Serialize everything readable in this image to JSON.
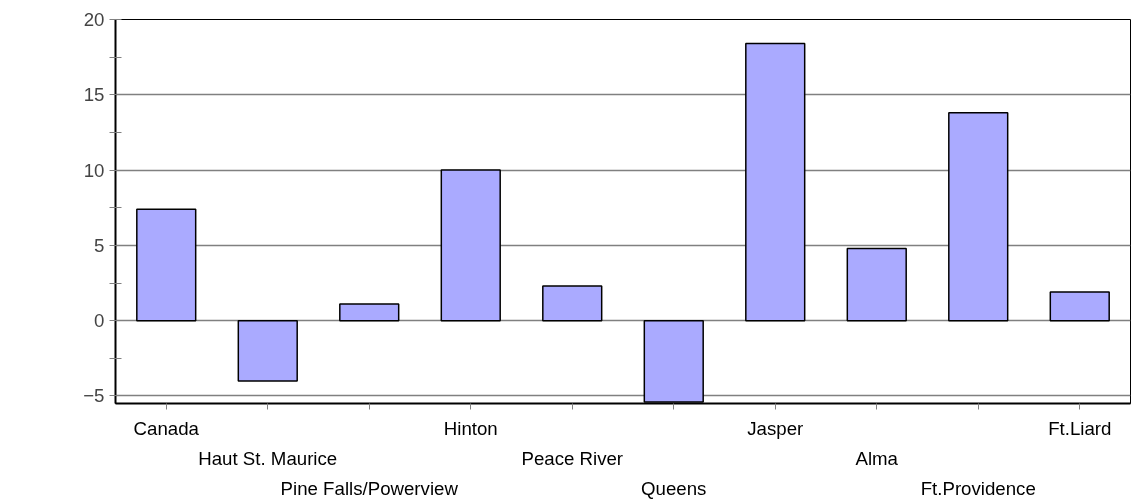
{
  "chart_data": {
    "type": "bar",
    "categories": [
      "Canada",
      "Haut St. Maurice",
      "Pine Falls/Powerview",
      "Hinton",
      "Peace River",
      "Queens",
      "Jasper",
      "Alma",
      "Ft.Providence",
      "Ft.Liard"
    ],
    "values": [
      7.4,
      -4.0,
      1.1,
      10.0,
      2.3,
      -5.4,
      18.4,
      4.8,
      13.8,
      1.9
    ],
    "color": "#aaaaff",
    "ylim": [
      -5.5,
      20
    ],
    "yticks": [
      -5,
      0,
      5,
      10,
      15,
      20
    ],
    "grid": "y"
  }
}
